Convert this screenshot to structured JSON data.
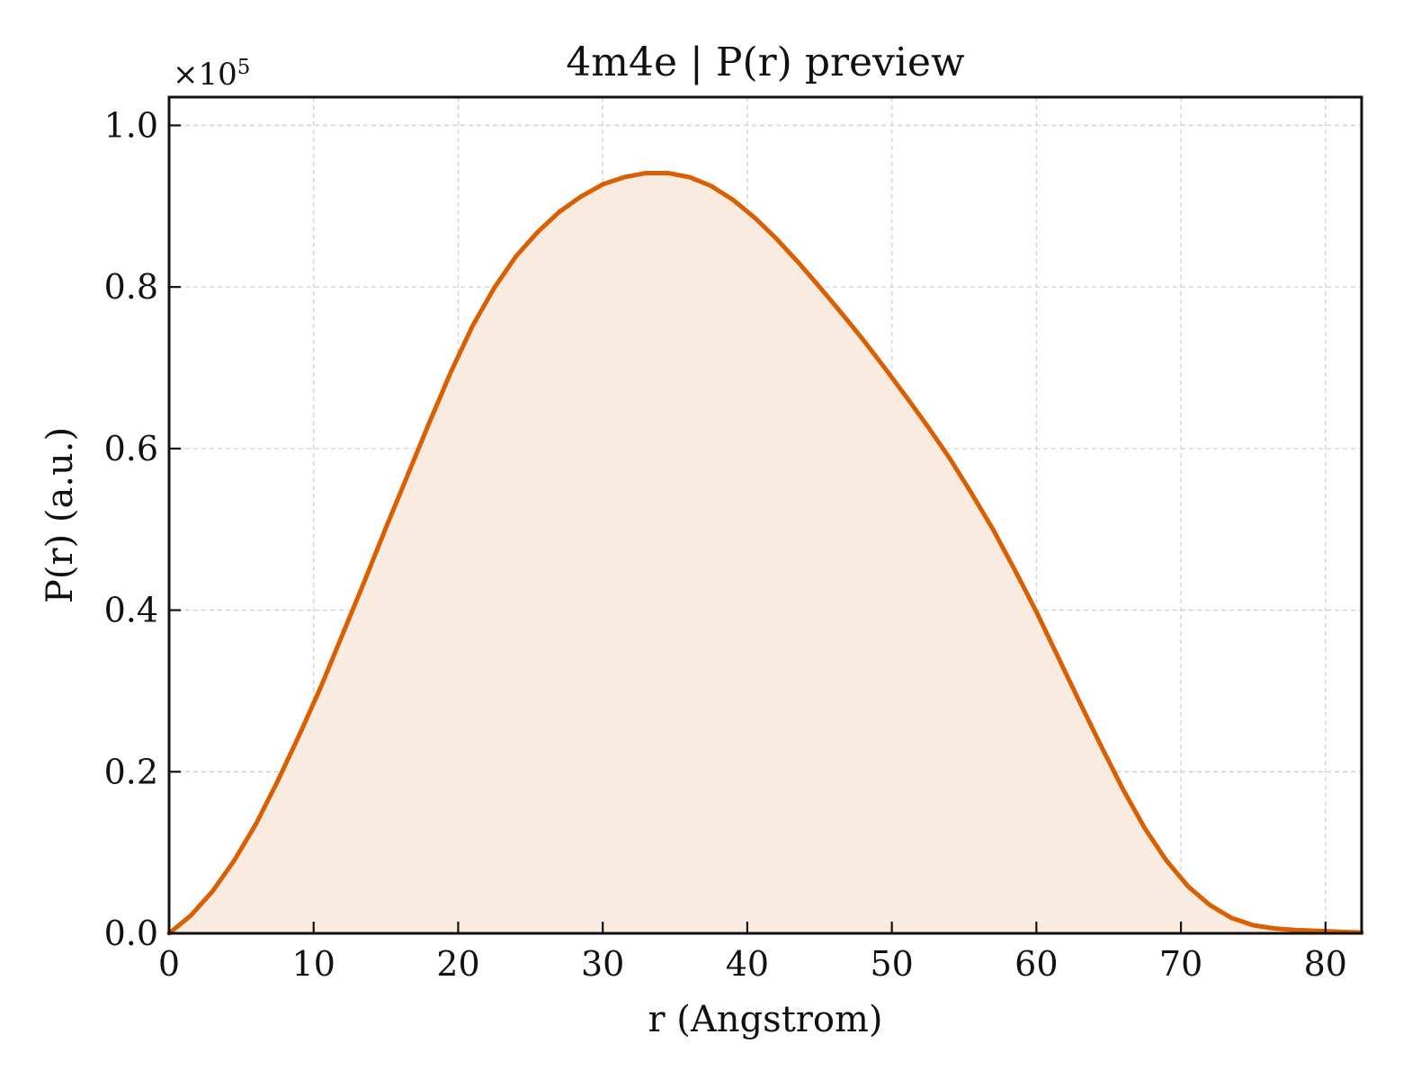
{
  "colors": {
    "line": "#d95f02",
    "fill": "#f9ebe0"
  },
  "chart_data": {
    "type": "area",
    "title": "4m4e | P(r) preview",
    "xlabel": "r (Angstrom)",
    "ylabel": "P(r) (a.u.)",
    "y_multiplier": "×10",
    "y_multiplier_exponent": "5",
    "xlim": [
      0,
      82.5
    ],
    "ylim": [
      0,
      1.035
    ],
    "grid": true,
    "legend": "none",
    "x_ticks": [
      0,
      10,
      20,
      30,
      40,
      50,
      60,
      70,
      80
    ],
    "x_tick_labels": [
      "0",
      "10",
      "20",
      "30",
      "40",
      "50",
      "60",
      "70",
      "80"
    ],
    "y_ticks": [
      0,
      0.2,
      0.4,
      0.6,
      0.8,
      1.0
    ],
    "y_tick_labels": [
      "0.0",
      "0.2",
      "0.4",
      "0.6",
      "0.8",
      "1.0"
    ],
    "series": [
      {
        "x": [
          0,
          1.5,
          3,
          4.5,
          6,
          7.5,
          9,
          10.5,
          12,
          13.5,
          15,
          16.5,
          18,
          19.5,
          21,
          22.5,
          24,
          25.5,
          27,
          28.5,
          30,
          31.5,
          33,
          34.5,
          36,
          37.5,
          39,
          40.5,
          42,
          43.5,
          45,
          46.5,
          48,
          49.5,
          51,
          52.5,
          54,
          55.5,
          57,
          58.5,
          60,
          61.5,
          63,
          64.5,
          66,
          67.5,
          69,
          70.5,
          72,
          73.5,
          75,
          76.5,
          78,
          79.5,
          81,
          82.5
        ],
        "y": [
          0.0,
          0.022,
          0.052,
          0.09,
          0.135,
          0.188,
          0.245,
          0.305,
          0.37,
          0.435,
          0.502,
          0.567,
          0.632,
          0.695,
          0.752,
          0.799,
          0.838,
          0.868,
          0.893,
          0.912,
          0.927,
          0.936,
          0.941,
          0.941,
          0.936,
          0.925,
          0.908,
          0.886,
          0.86,
          0.831,
          0.8,
          0.768,
          0.735,
          0.7,
          0.664,
          0.627,
          0.588,
          0.545,
          0.5,
          0.45,
          0.398,
          0.342,
          0.286,
          0.231,
          0.178,
          0.13,
          0.09,
          0.058,
          0.035,
          0.019,
          0.01,
          0.006,
          0.004,
          0.003,
          0.002,
          0.001
        ]
      }
    ]
  }
}
